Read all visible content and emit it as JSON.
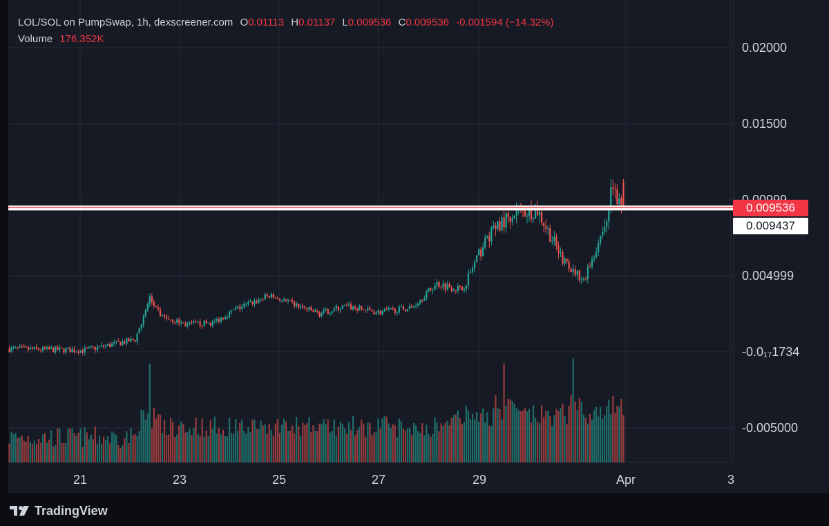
{
  "header": {
    "title": "LOL/SOL on PumpSwap, 1h, dexscreener.com",
    "open_label": "O",
    "open": "0.01113",
    "high_label": "H",
    "high": "0.01137",
    "low_label": "L",
    "low": "0.009536",
    "close_label": "C",
    "close": "0.009536",
    "change": "-0.001594 (−14.32%)",
    "volume_label": "Volume",
    "volume": "176.352K"
  },
  "price_scale": {
    "labels": [
      {
        "text": "0.02000",
        "value": 0.02
      },
      {
        "text": "0.01500",
        "value": 0.015
      },
      {
        "text": "0.00999",
        "value": 0.00999
      },
      {
        "text": "0.004999",
        "value": 0.004999
      },
      {
        "text": "-0.0₁₇1734",
        "value": 0
      },
      {
        "text": "-0.005000",
        "value": -0.005
      }
    ],
    "current_price_tag": "0.009536",
    "horizontal_line_tag": "0.009437"
  },
  "time_axis": {
    "labels": [
      "21",
      "23",
      "25",
      "27",
      "29",
      "Apr",
      "3"
    ]
  },
  "footer": {
    "brand": "TradingView"
  },
  "colors": {
    "up": "#26a69a",
    "down": "#ef5350",
    "background": "#161a24",
    "grid": "#262b38",
    "price_tag": "#f23645",
    "line": "#ffffff"
  },
  "chart_data": {
    "type": "candlestick",
    "title": "LOL/SOL on PumpSwap, 1h, dexscreener.com",
    "x_unit": "hourly candles, 20 Mar – 1 Apr",
    "ylim": [
      -0.0075,
      0.022
    ],
    "horizontal_line": 0.009437,
    "last_price": 0.009536,
    "last_candle": {
      "open": 0.01113,
      "high": 0.01137,
      "low": 0.009536,
      "close": 0.009536
    },
    "volume_last": "176.352K",
    "close_path": [
      {
        "date": "Mar 20 00:00",
        "close": 0.0002
      },
      {
        "date": "Mar 21 12:00",
        "close": 0.0001
      },
      {
        "date": "Mar 22 12:00",
        "close": 0.0008
      },
      {
        "date": "Mar 22 19:00",
        "close": 0.0035
      },
      {
        "date": "Mar 23 00:00",
        "close": 0.0024
      },
      {
        "date": "Mar 23 12:00",
        "close": 0.0018
      },
      {
        "date": "Mar 24 01:00",
        "close": 0.0019
      },
      {
        "date": "Mar 24 12:00",
        "close": 0.0028
      },
      {
        "date": "Mar 25 04:00",
        "close": 0.0037
      },
      {
        "date": "Mar 25 16:00",
        "close": 0.0031
      },
      {
        "date": "Mar 26 04:00",
        "close": 0.0025
      },
      {
        "date": "Mar 26 16:00",
        "close": 0.003
      },
      {
        "date": "Mar 27 08:00",
        "close": 0.0026
      },
      {
        "date": "Mar 28 00:00",
        "close": 0.0029
      },
      {
        "date": "Mar 28 12:00",
        "close": 0.0045
      },
      {
        "date": "Mar 29 00:00",
        "close": 0.0041
      },
      {
        "date": "Mar 29 12:00",
        "close": 0.0075
      },
      {
        "date": "Mar 30 00:00",
        "close": 0.0092
      },
      {
        "date": "Mar 30 12:00",
        "close": 0.0093
      },
      {
        "date": "Mar 31 00:00",
        "close": 0.0061
      },
      {
        "date": "Mar 31 10:00",
        "close": 0.0047
      },
      {
        "date": "Mar 31 20:00",
        "close": 0.0083
      },
      {
        "date": "Apr 1 00:00",
        "close": 0.0111
      },
      {
        "date": "Apr 1 02:00",
        "close": 0.009536
      }
    ],
    "volume_spikes": [
      {
        "date": "Mar 22 19:00",
        "level": 0.55
      },
      {
        "date": "Mar 29 20:00",
        "level": 0.55
      },
      {
        "date": "Mar 31 05:00",
        "level": 0.58
      },
      {
        "date": "Apr 1 00:00",
        "level": 0.37
      }
    ]
  }
}
